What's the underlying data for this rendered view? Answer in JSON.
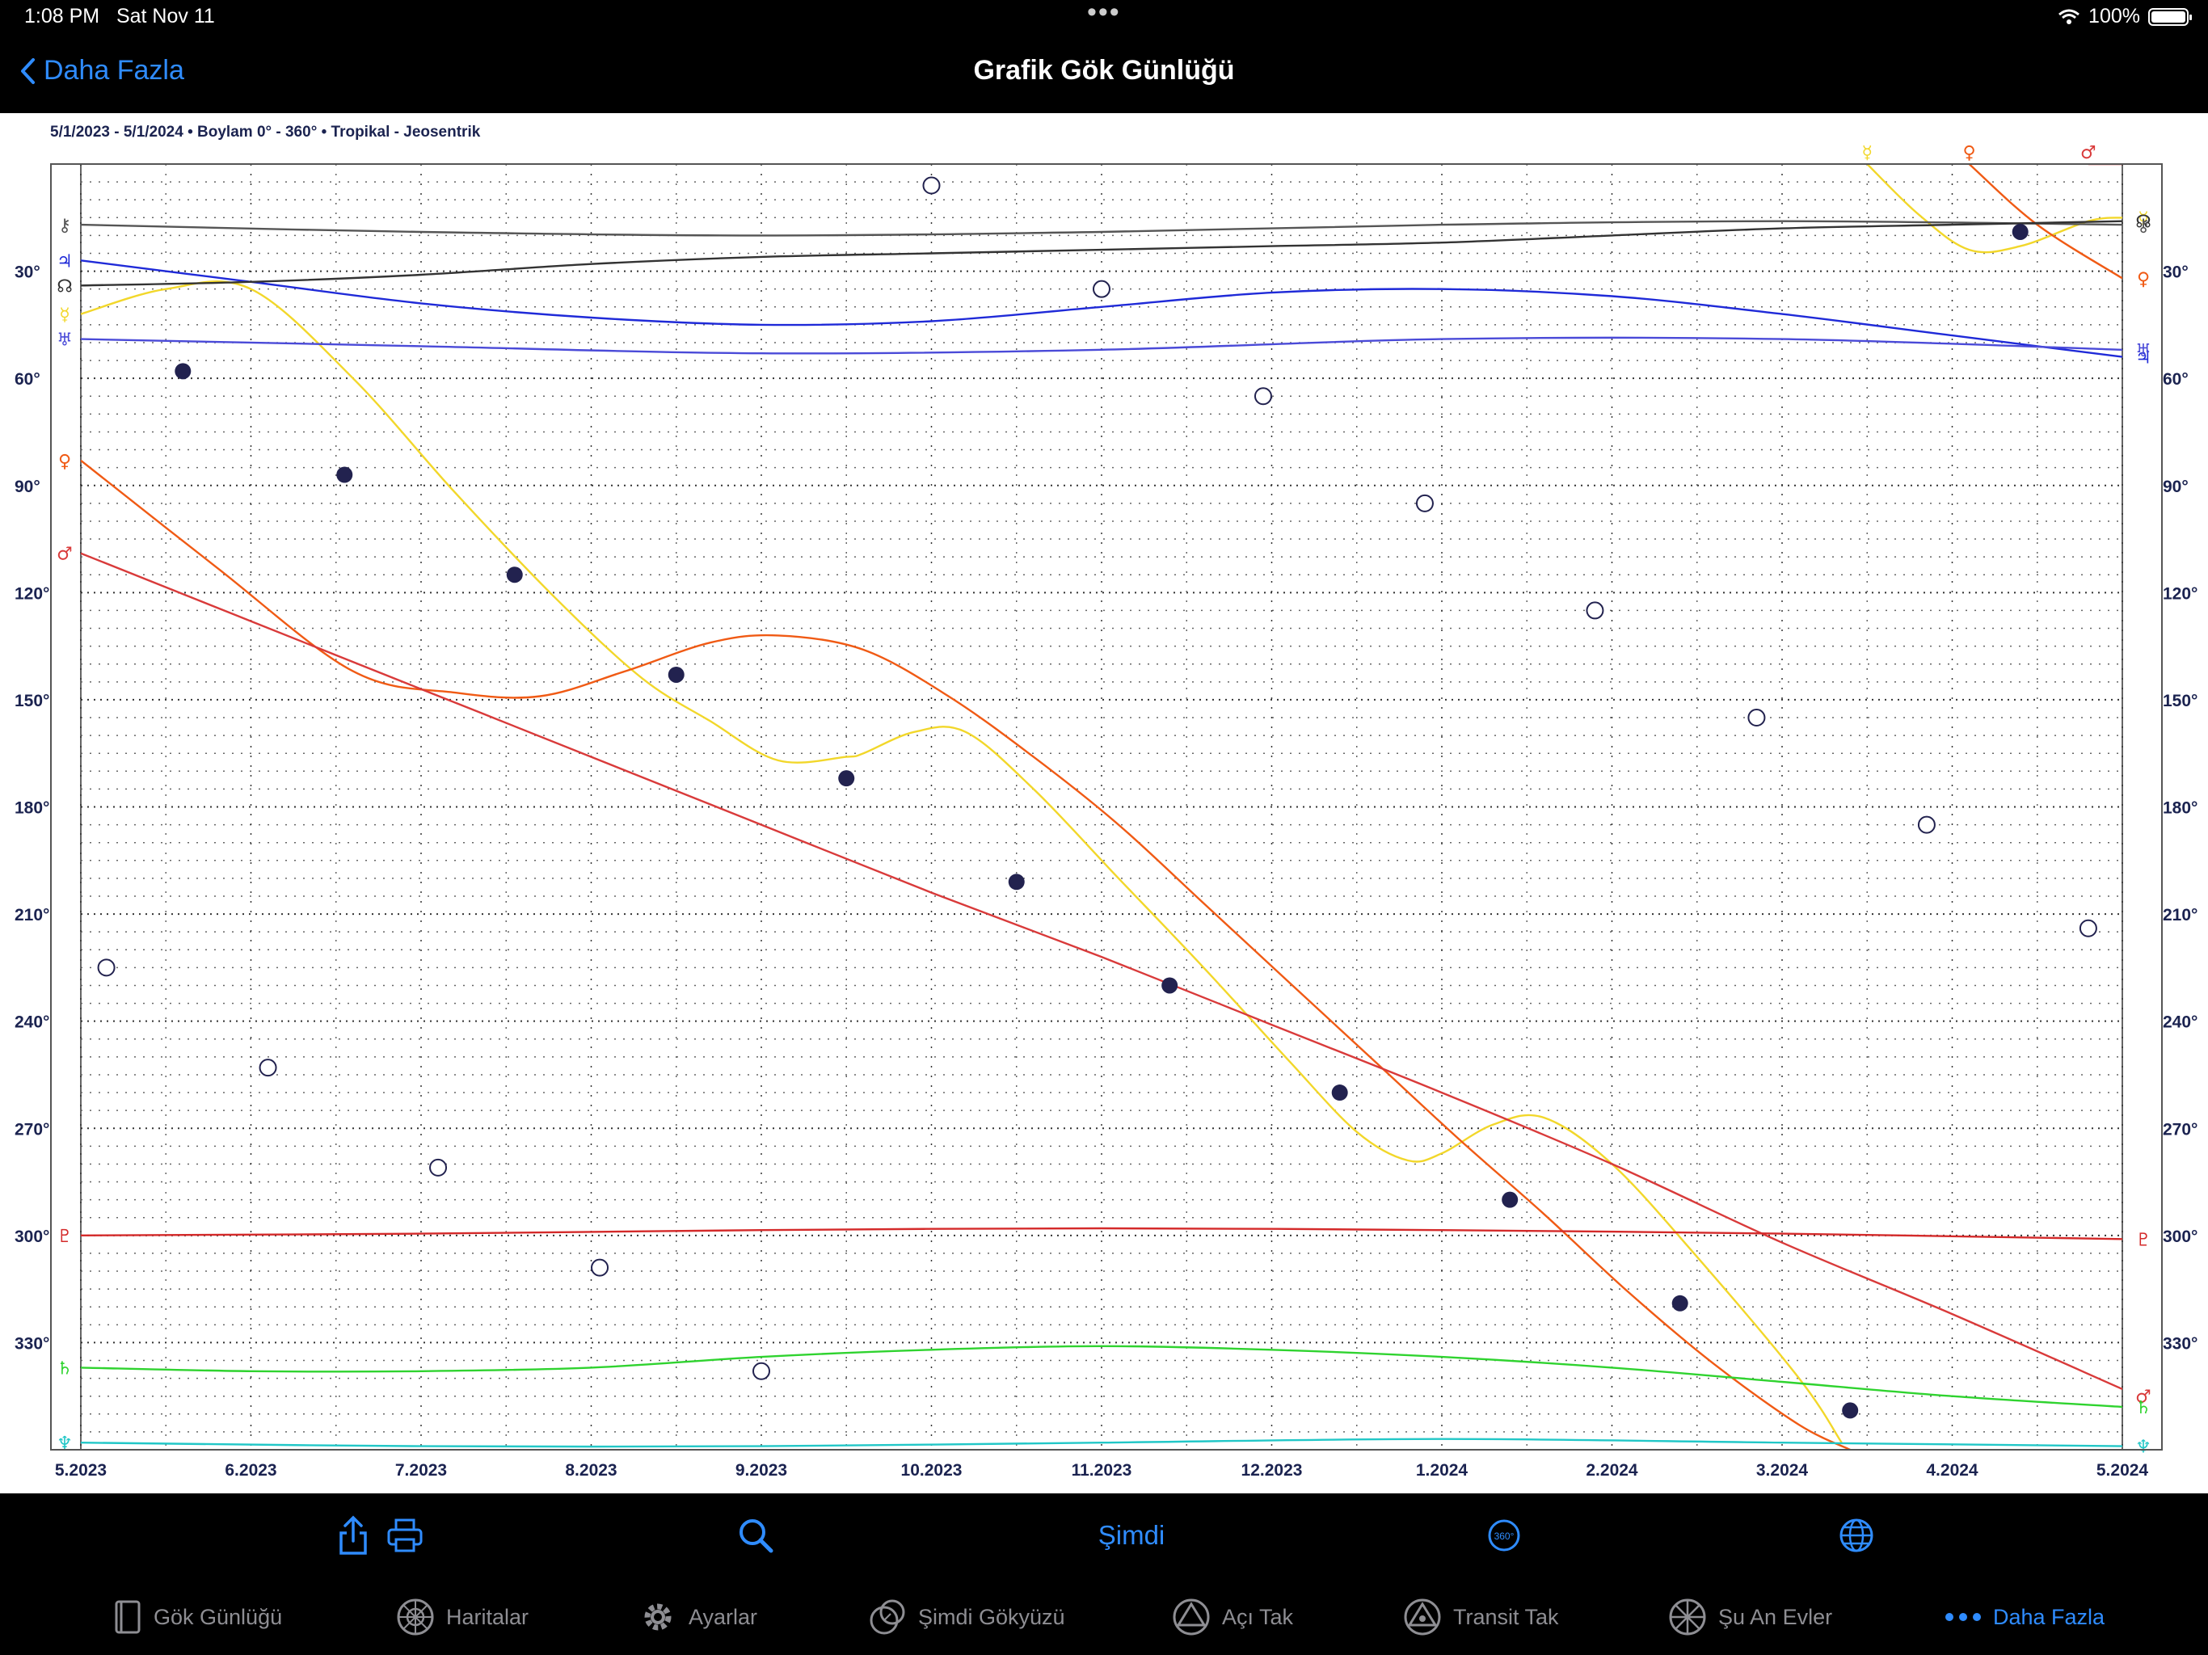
{
  "status": {
    "time": "1:08 PM",
    "date": "Sat Nov 11",
    "battery": "100%"
  },
  "nav": {
    "back_label": "Daha Fazla",
    "title": "Grafik Gök Günlüğü"
  },
  "chart_info": {
    "range": "5/1/2023 - 5/1/2024",
    "mode": "Boylam  0° - 360°",
    "system": "Tropikal - Jeosentrik"
  },
  "toolbar": {
    "now_label": "Şimdi",
    "icons": [
      "share-icon",
      "print-icon",
      "search-icon",
      "now",
      "360-icon",
      "globe-icon"
    ]
  },
  "tabs": [
    {
      "label": "Gök Günlüğü",
      "icon": "book-icon",
      "active": false
    },
    {
      "label": "Haritalar",
      "icon": "wheel-icon",
      "active": false
    },
    {
      "label": "Ayarlar",
      "icon": "gear-icon",
      "active": false
    },
    {
      "label": "Şimdi Gökyüzü",
      "icon": "sky-icon",
      "active": false
    },
    {
      "label": "Açı Tak",
      "icon": "triangle-icon",
      "active": false
    },
    {
      "label": "Transit Tak",
      "icon": "triangle-icon",
      "active": false
    },
    {
      "label": "Şu An Evler",
      "icon": "houses-icon",
      "active": false
    },
    {
      "label": "Daha Fazla",
      "icon": "more-dots-icon",
      "active": true
    }
  ],
  "chart_data": {
    "type": "line",
    "x_ticks": [
      "5.2023",
      "6.2023",
      "7.2023",
      "8.2023",
      "9.2023",
      "10.2023",
      "11.2023",
      "12.2023",
      "1.2024",
      "2.2024",
      "3.2024",
      "4.2024",
      "5.2024"
    ],
    "y_ticks": [
      "30°",
      "60°",
      "90°",
      "120°",
      "150°",
      "180°",
      "210°",
      "240°",
      "270°",
      "300°",
      "330°"
    ],
    "ylim": [
      0,
      360
    ],
    "y_inverted": true,
    "grid": true,
    "colors": {
      "sun": "#5b3fd0",
      "mercury": "#f2d72a",
      "venus": "#f05a14",
      "mars": "#d93a3a",
      "jupiter": "#1f2ad8",
      "saturn": "#2fd32f",
      "uranus": "#4a4ad8",
      "neptune": "#22c7c7",
      "pluto": "#d42a2a",
      "chiron": "#555555",
      "node": "#333333",
      "moon": "#222255"
    },
    "series": [
      {
        "key": "mercury",
        "glyph": "☿",
        "points": [
          [
            0,
            42
          ],
          [
            0.5,
            35
          ],
          [
            1.0,
            35
          ],
          [
            1.6,
            60
          ],
          [
            2.2,
            92
          ],
          [
            2.8,
            122
          ],
          [
            3.3,
            144
          ],
          [
            3.7,
            156
          ],
          [
            4.1,
            167
          ],
          [
            4.5,
            166
          ],
          [
            4.6,
            165
          ],
          [
            4.9,
            159
          ],
          [
            5.2,
            159
          ],
          [
            5.6,
            175
          ],
          [
            6.1,
            200
          ],
          [
            6.6,
            225
          ],
          [
            7.1,
            251
          ],
          [
            7.5,
            271
          ],
          [
            7.8,
            279
          ],
          [
            8.0,
            277
          ],
          [
            8.3,
            269
          ],
          [
            8.6,
            267
          ],
          [
            9.0,
            280
          ],
          [
            9.5,
            306
          ],
          [
            10.1,
            340
          ],
          [
            10.35,
            358
          ]
        ]
      },
      {
        "key": "mercury",
        "glyph": "☿",
        "points": [
          [
            10.5,
            0
          ],
          [
            10.8,
            14
          ],
          [
            11.1,
            24
          ],
          [
            11.4,
            23
          ],
          [
            11.8,
            16
          ],
          [
            12.0,
            15
          ]
        ]
      },
      {
        "key": "venus",
        "glyph": "♀",
        "points": [
          [
            0,
            83
          ],
          [
            0.8,
            113
          ],
          [
            1.6,
            142
          ],
          [
            2.2,
            148
          ],
          [
            2.7,
            149
          ],
          [
            3.2,
            142
          ],
          [
            3.7,
            134
          ],
          [
            4.1,
            132
          ],
          [
            4.6,
            136
          ],
          [
            5.1,
            149
          ],
          [
            5.6,
            166
          ],
          [
            6.1,
            185
          ],
          [
            6.6,
            207
          ],
          [
            7.1,
            229
          ],
          [
            7.6,
            251
          ],
          [
            8.1,
            273
          ],
          [
            8.6,
            294
          ],
          [
            9.1,
            316
          ],
          [
            9.6,
            336
          ],
          [
            10.1,
            353
          ],
          [
            10.4,
            360
          ]
        ]
      },
      {
        "key": "venus",
        "glyph": "♀",
        "points": [
          [
            11.1,
            0
          ],
          [
            11.5,
            17
          ],
          [
            12.0,
            32
          ]
        ]
      },
      {
        "key": "mars",
        "glyph": "♂",
        "points": [
          [
            0,
            109
          ],
          [
            1,
            128
          ],
          [
            2,
            147
          ],
          [
            3,
            166
          ],
          [
            4,
            185
          ],
          [
            5,
            204
          ],
          [
            6,
            222
          ],
          [
            7,
            241
          ],
          [
            8,
            260
          ],
          [
            9,
            280
          ],
          [
            10,
            302
          ],
          [
            11,
            322
          ],
          [
            12,
            343
          ],
          [
            12.1,
            345
          ]
        ]
      },
      {
        "key": "mars",
        "glyph": "♂",
        "points": [
          [
            11.8,
            0
          ],
          [
            12.1,
            0
          ]
        ]
      },
      {
        "key": "jupiter",
        "glyph": "♃",
        "points": [
          [
            0,
            27
          ],
          [
            1,
            33
          ],
          [
            2,
            39
          ],
          [
            3,
            43
          ],
          [
            4,
            45
          ],
          [
            5,
            44
          ],
          [
            6,
            40
          ],
          [
            7,
            36
          ],
          [
            8,
            35
          ],
          [
            9,
            37
          ],
          [
            10,
            42
          ],
          [
            11,
            48
          ],
          [
            12,
            54
          ]
        ]
      },
      {
        "key": "saturn",
        "glyph": "♄",
        "points": [
          [
            0,
            337
          ],
          [
            1,
            338
          ],
          [
            2,
            338
          ],
          [
            3,
            337
          ],
          [
            4,
            334
          ],
          [
            5,
            332
          ],
          [
            6,
            331
          ],
          [
            7,
            332
          ],
          [
            8,
            334
          ],
          [
            9,
            337
          ],
          [
            10,
            341
          ],
          [
            11,
            345
          ],
          [
            12,
            348
          ]
        ]
      },
      {
        "key": "uranus",
        "glyph": "♅",
        "points": [
          [
            0,
            49
          ],
          [
            2,
            51
          ],
          [
            4,
            53
          ],
          [
            6,
            52
          ],
          [
            8,
            49
          ],
          [
            10,
            49
          ],
          [
            12,
            52
          ]
        ]
      },
      {
        "key": "neptune",
        "glyph": "♆",
        "points": [
          [
            0,
            358
          ],
          [
            2,
            359
          ],
          [
            4,
            359
          ],
          [
            6,
            358
          ],
          [
            8,
            357
          ],
          [
            10,
            358
          ],
          [
            12,
            359
          ]
        ]
      },
      {
        "key": "pluto",
        "glyph": "♇",
        "points": [
          [
            0,
            300
          ],
          [
            2,
            299.5
          ],
          [
            4,
            298.5
          ],
          [
            6,
            298
          ],
          [
            8,
            298.5
          ],
          [
            10,
            299.5
          ],
          [
            12,
            301
          ]
        ]
      },
      {
        "key": "chiron",
        "glyph": "⚷",
        "points": [
          [
            0,
            17
          ],
          [
            2,
            19
          ],
          [
            4,
            20
          ],
          [
            6,
            19
          ],
          [
            8,
            17
          ],
          [
            10,
            16
          ],
          [
            12,
            17
          ]
        ]
      },
      {
        "key": "node",
        "glyph": "☊",
        "points": [
          [
            0,
            34
          ],
          [
            1,
            33
          ],
          [
            2,
            31
          ],
          [
            3,
            28
          ],
          [
            4,
            26
          ],
          [
            5,
            25
          ],
          [
            6,
            24
          ],
          [
            7,
            23
          ],
          [
            8,
            22
          ],
          [
            9,
            20
          ],
          [
            10,
            18
          ],
          [
            11,
            17
          ],
          [
            12,
            16
          ]
        ]
      }
    ],
    "moon_new": [
      [
        0.6,
        58
      ],
      [
        1.55,
        87
      ],
      [
        2.55,
        115
      ],
      [
        3.5,
        143
      ],
      [
        4.5,
        172
      ],
      [
        5.5,
        201
      ],
      [
        6.4,
        230
      ],
      [
        7.4,
        260
      ],
      [
        8.4,
        290
      ],
      [
        9.4,
        319
      ],
      [
        10.4,
        349
      ],
      [
        11.4,
        19
      ]
    ],
    "moon_full": [
      [
        0.15,
        225
      ],
      [
        1.1,
        253
      ],
      [
        2.1,
        281
      ],
      [
        3.05,
        309
      ],
      [
        4.0,
        338
      ],
      [
        5.0,
        6
      ],
      [
        6.0,
        35
      ],
      [
        6.95,
        65
      ],
      [
        7.9,
        95
      ],
      [
        8.9,
        125
      ],
      [
        9.85,
        155
      ],
      [
        10.85,
        185
      ],
      [
        11.8,
        214
      ]
    ]
  }
}
